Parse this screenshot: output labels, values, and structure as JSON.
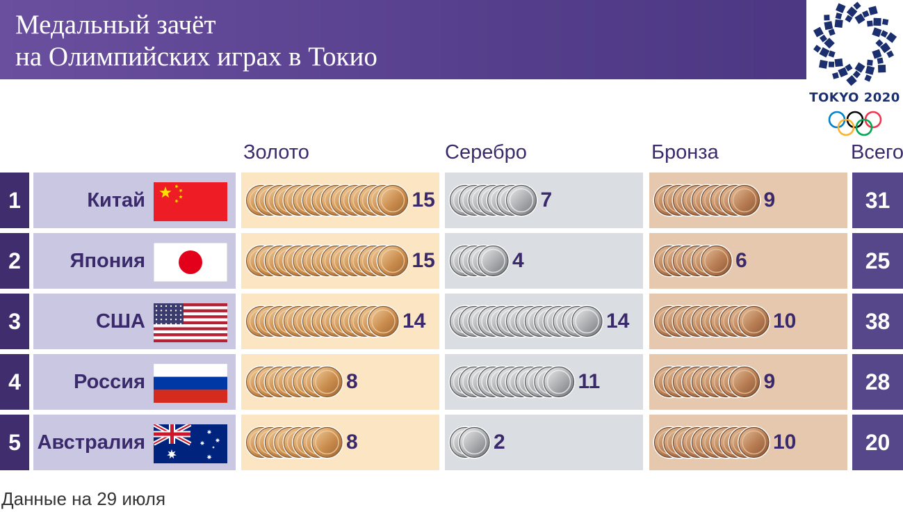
{
  "header": {
    "title_line1": "Медальный зачёт",
    "title_line2": "на Олимпийских играх в Токио"
  },
  "logo": {
    "text": "TOKYO 2020",
    "icon": "tokyo-2020-emblem"
  },
  "columns": {
    "gold": "Золото",
    "silver": "Серебро",
    "bronze": "Бронза",
    "total": "Всего"
  },
  "footnote": "Данные на 29 июля",
  "colors": {
    "header": "#5a4392",
    "rank": "#3f2d6e",
    "country_bg": "#c9c7e1",
    "gold_bg": "#fbe5c2",
    "silver_bg": "#dadee2",
    "bronze_bg": "#e5c8ad",
    "total_bg": "#56478a"
  },
  "chart_data": {
    "type": "table",
    "categories": [
      "Китай",
      "Япония",
      "США",
      "Россия",
      "Австралия"
    ],
    "rows": [
      {
        "rank": "1",
        "country": "Китай",
        "flag": "china-flag",
        "gold": 15,
        "silver": 7,
        "bronze": 9,
        "total": 31
      },
      {
        "rank": "2",
        "country": "Япония",
        "flag": "japan-flag",
        "gold": 15,
        "silver": 4,
        "bronze": 6,
        "total": 25
      },
      {
        "rank": "3",
        "country": "США",
        "flag": "usa-flag",
        "gold": 14,
        "silver": 14,
        "bronze": 10,
        "total": 38
      },
      {
        "rank": "4",
        "country": "Россия",
        "flag": "russia-flag",
        "gold": 8,
        "silver": 11,
        "bronze": 9,
        "total": 28
      },
      {
        "rank": "5",
        "country": "Австралия",
        "flag": "australia-flag",
        "gold": 8,
        "silver": 2,
        "bronze": 10,
        "total": 20
      }
    ]
  }
}
